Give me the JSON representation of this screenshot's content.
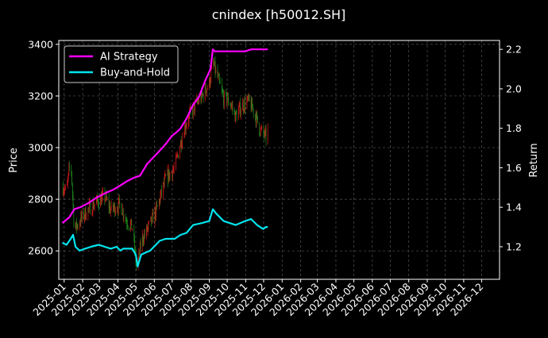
{
  "chart_data": {
    "type": "line",
    "title": "cnindex [h50012.SH]",
    "ylabel_left": "Price",
    "ylabel_right": "Return",
    "ylim_left": [
      2490,
      3415
    ],
    "ylim_right": [
      1.035,
      2.245
    ],
    "yticks_left": [
      2600,
      2800,
      3000,
      3200,
      3400
    ],
    "yticks_right": [
      1.2,
      1.4,
      1.6,
      1.8,
      2.0,
      2.2
    ],
    "x_axis": {
      "start": "2024-12-23",
      "end": "2026-12-31",
      "ticks": [
        "2025-01",
        "2025-02",
        "2025-03",
        "2025-04",
        "2025-05",
        "2025-06",
        "2025-07",
        "2025-08",
        "2025-09",
        "2025-10",
        "2025-11",
        "2025-12",
        "2026-01",
        "2026-02",
        "2026-03",
        "2026-04",
        "2026-05",
        "2026-06",
        "2026-07",
        "2026-08",
        "2026-09",
        "2026-10",
        "2026-11",
        "2026-12"
      ]
    },
    "grid": true,
    "legend_position": "top-left",
    "colors": {
      "up": "#d11a1a",
      "down": "#1e8a1e",
      "ai": "#ff00ff",
      "bh": "#00e5ee",
      "grid": "#555555"
    },
    "series": [
      {
        "name": "AI Strategy",
        "axis": "right",
        "points": [
          [
            "2024-12-29",
            1.32
          ],
          [
            "2025-01-10",
            1.35
          ],
          [
            "2025-01-18",
            1.39
          ],
          [
            "2025-01-28",
            1.4
          ],
          [
            "2025-02-10",
            1.42
          ],
          [
            "2025-02-25",
            1.45
          ],
          [
            "2025-03-10",
            1.47
          ],
          [
            "2025-03-25",
            1.49
          ],
          [
            "2025-04-05",
            1.51
          ],
          [
            "2025-04-15",
            1.53
          ],
          [
            "2025-04-28",
            1.55
          ],
          [
            "2025-05-08",
            1.56
          ],
          [
            "2025-05-20",
            1.62
          ],
          [
            "2025-06-05",
            1.67
          ],
          [
            "2025-06-20",
            1.72
          ],
          [
            "2025-06-30",
            1.76
          ],
          [
            "2025-07-08",
            1.78
          ],
          [
            "2025-07-15",
            1.8
          ],
          [
            "2025-07-25",
            1.85
          ],
          [
            "2025-08-05",
            1.92
          ],
          [
            "2025-08-15",
            1.96
          ],
          [
            "2025-08-25",
            2.04
          ],
          [
            "2025-09-03",
            2.1
          ],
          [
            "2025-09-07",
            2.2
          ],
          [
            "2025-09-10",
            2.19
          ],
          [
            "2025-09-20",
            2.19
          ],
          [
            "2025-10-01",
            2.19
          ],
          [
            "2025-10-15",
            2.19
          ],
          [
            "2025-10-31",
            2.19
          ],
          [
            "2025-11-10",
            2.2
          ],
          [
            "2025-11-25",
            2.2
          ],
          [
            "2025-12-08",
            2.2
          ]
        ]
      },
      {
        "name": "Buy-and-Hold",
        "axis": "right",
        "points": [
          [
            "2024-12-29",
            1.22
          ],
          [
            "2025-01-05",
            1.21
          ],
          [
            "2025-01-12",
            1.24
          ],
          [
            "2025-01-16",
            1.26
          ],
          [
            "2025-01-20",
            1.2
          ],
          [
            "2025-01-27",
            1.18
          ],
          [
            "2025-02-05",
            1.19
          ],
          [
            "2025-02-15",
            1.2
          ],
          [
            "2025-02-28",
            1.21
          ],
          [
            "2025-03-10",
            1.2
          ],
          [
            "2025-03-20",
            1.19
          ],
          [
            "2025-03-30",
            1.2
          ],
          [
            "2025-04-05",
            1.18
          ],
          [
            "2025-04-10",
            1.19
          ],
          [
            "2025-04-25",
            1.19
          ],
          [
            "2025-05-01",
            1.16
          ],
          [
            "2025-05-04",
            1.1
          ],
          [
            "2025-05-10",
            1.16
          ],
          [
            "2025-05-25",
            1.18
          ],
          [
            "2025-06-10",
            1.23
          ],
          [
            "2025-06-20",
            1.24
          ],
          [
            "2025-07-05",
            1.24
          ],
          [
            "2025-07-15",
            1.26
          ],
          [
            "2025-07-25",
            1.27
          ],
          [
            "2025-08-05",
            1.31
          ],
          [
            "2025-08-20",
            1.32
          ],
          [
            "2025-09-01",
            1.33
          ],
          [
            "2025-09-07",
            1.39
          ],
          [
            "2025-09-12",
            1.37
          ],
          [
            "2025-09-25",
            1.33
          ],
          [
            "2025-10-05",
            1.32
          ],
          [
            "2025-10-15",
            1.31
          ],
          [
            "2025-10-31",
            1.33
          ],
          [
            "2025-11-10",
            1.34
          ],
          [
            "2025-11-20",
            1.31
          ],
          [
            "2025-11-30",
            1.29
          ],
          [
            "2025-12-05",
            1.3
          ],
          [
            "2025-12-08",
            1.3
          ]
        ]
      }
    ],
    "price_path": [
      [
        "2024-12-29",
        2850
      ],
      [
        "2025-01-05",
        2830
      ],
      [
        "2025-01-12",
        2960
      ],
      [
        "2025-01-18",
        2680
      ],
      [
        "2025-01-28",
        2720
      ],
      [
        "2025-02-10",
        2760
      ],
      [
        "2025-02-25",
        2790
      ],
      [
        "2025-03-10",
        2810
      ],
      [
        "2025-03-20",
        2760
      ],
      [
        "2025-04-05",
        2780
      ],
      [
        "2025-04-15",
        2720
      ],
      [
        "2025-04-25",
        2690
      ],
      [
        "2025-05-03",
        2520
      ],
      [
        "2025-05-10",
        2640
      ],
      [
        "2025-05-20",
        2680
      ],
      [
        "2025-06-05",
        2760
      ],
      [
        "2025-06-20",
        2880
      ],
      [
        "2025-07-05",
        2920
      ],
      [
        "2025-07-15",
        3020
      ],
      [
        "2025-07-25",
        3100
      ],
      [
        "2025-08-05",
        3150
      ],
      [
        "2025-08-20",
        3200
      ],
      [
        "2025-09-01",
        3250
      ],
      [
        "2025-09-07",
        3330
      ],
      [
        "2025-09-15",
        3270
      ],
      [
        "2025-09-25",
        3190
      ],
      [
        "2025-10-05",
        3180
      ],
      [
        "2025-10-15",
        3120
      ],
      [
        "2025-10-25",
        3160
      ],
      [
        "2025-11-05",
        3180
      ],
      [
        "2025-11-15",
        3140
      ],
      [
        "2025-11-25",
        3070
      ],
      [
        "2025-12-05",
        3040
      ],
      [
        "2025-12-08",
        3070
      ]
    ]
  }
}
